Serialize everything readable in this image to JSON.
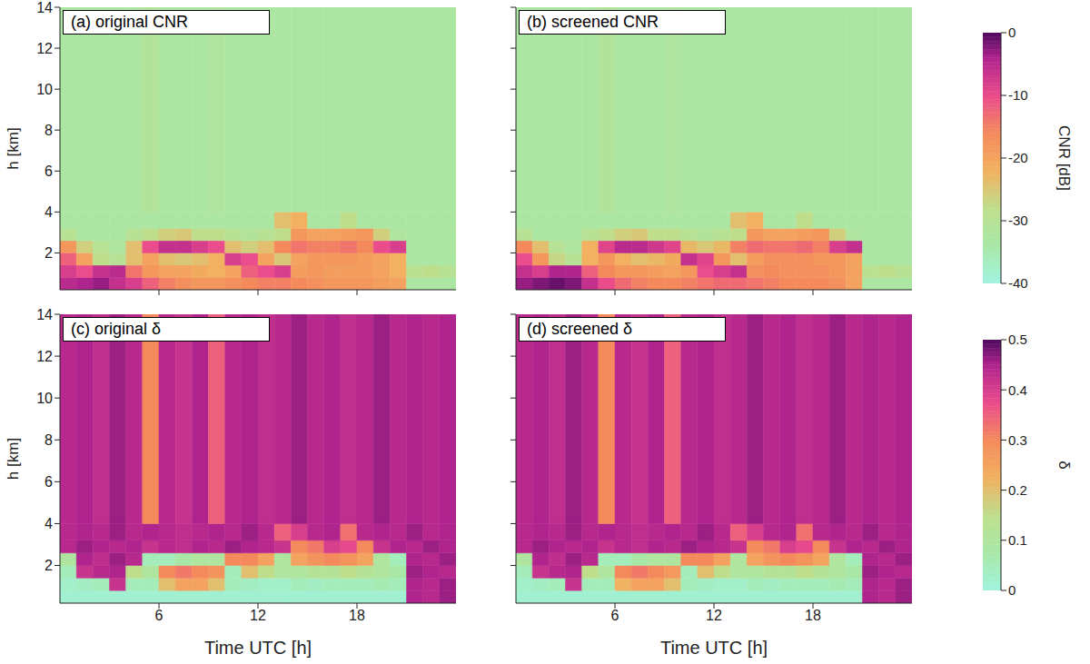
{
  "chart_data": [
    {
      "type": "heatmap",
      "title": "(a) original CNR",
      "y_label": "h [km]",
      "xlim": [
        0,
        24
      ],
      "xticks": [
        6,
        12,
        18
      ],
      "ylim": [
        0.2,
        14
      ],
      "yticks": [
        2,
        4,
        6,
        8,
        10,
        12,
        14
      ],
      "tick_labels": "y",
      "x_edges": [
        0,
        1,
        2,
        3,
        4,
        5,
        6,
        7,
        8,
        9,
        10,
        11,
        12,
        13,
        14,
        15,
        16,
        17,
        18,
        19,
        20,
        21,
        22,
        23,
        24
      ],
      "y_edges": [
        0.2,
        0.8,
        1.4,
        2,
        2.6,
        3.2,
        4,
        14
      ],
      "values": [
        [
          -5,
          -4,
          -3,
          -6,
          -8,
          -12,
          -15,
          -17,
          -18,
          -18,
          -17,
          -16,
          -15,
          -15,
          -16,
          -17,
          -18,
          -18,
          -18,
          -19,
          -20,
          -33,
          -33,
          -33
        ],
        [
          -8,
          -10,
          -6,
          -5,
          -14,
          -18,
          -20,
          -20,
          -21,
          -22,
          -20,
          -12,
          -10,
          -8,
          -19,
          -18,
          -19,
          -19,
          -19,
          -20,
          -22,
          -29,
          -28,
          -30
        ],
        [
          -12,
          -20,
          -28,
          -30,
          -24,
          -20,
          -24,
          -25,
          -24,
          -22,
          -8,
          -10,
          -20,
          -25,
          -20,
          -18,
          -18,
          -18,
          -19,
          -20,
          -22,
          -33,
          -33,
          -33
        ],
        [
          -18,
          -26,
          -30,
          -32,
          -24,
          -10,
          -6,
          -6,
          -8,
          -10,
          -24,
          -26,
          -24,
          -16,
          -14,
          -15,
          -15,
          -14,
          -16,
          -10,
          -8,
          -33,
          -33,
          -33
        ],
        [
          -30,
          -33,
          -33,
          -33,
          -30,
          -28,
          -26,
          -25,
          -28,
          -28,
          -30,
          -31,
          -30,
          -28,
          -18,
          -20,
          -20,
          -19,
          -18,
          -26,
          -32,
          -33,
          -33,
          -33
        ],
        [
          -33,
          -33,
          -33,
          -33,
          -33,
          -33,
          -33,
          -33,
          -33,
          -33,
          -33,
          -33,
          -33,
          -24,
          -22,
          -33,
          -33,
          -28,
          -33,
          -33,
          -33,
          -33,
          -33,
          -33
        ],
        [
          -33,
          -33,
          -33,
          -33,
          -33,
          -31,
          -33,
          -33,
          -33,
          -32,
          -33,
          -33,
          -33,
          -33,
          -33,
          -33,
          -33,
          -33,
          -33,
          -33,
          -33,
          -33,
          -33,
          -33
        ]
      ]
    },
    {
      "type": "heatmap",
      "title": "(b) screened CNR",
      "xlim": [
        0,
        24
      ],
      "xticks": [
        6,
        12,
        18
      ],
      "ylim": [
        0.2,
        14
      ],
      "yticks": [
        2,
        4,
        6,
        8,
        10,
        12,
        14
      ],
      "tick_labels": false,
      "x_edges": [
        0,
        1,
        2,
        3,
        4,
        5,
        6,
        7,
        8,
        9,
        10,
        11,
        12,
        13,
        14,
        15,
        16,
        17,
        18,
        19,
        20,
        21,
        22,
        23,
        24
      ],
      "y_edges": [
        0.2,
        0.8,
        1.4,
        2,
        2.6,
        3.2,
        4,
        14
      ],
      "values": [
        [
          -3,
          -2,
          -1,
          -2,
          -6,
          -10,
          -13,
          -15,
          -16,
          -16,
          -15,
          -14,
          -13,
          -13,
          -14,
          -15,
          -16,
          -16,
          -16,
          -17,
          -20,
          -33,
          -33,
          -33
        ],
        [
          -6,
          -8,
          -4,
          -4,
          -12,
          -16,
          -18,
          -18,
          -19,
          -20,
          -18,
          -10,
          -8,
          -6,
          -17,
          -16,
          -17,
          -17,
          -17,
          -18,
          -20,
          -29,
          -28,
          -30
        ],
        [
          -10,
          -18,
          -27,
          -30,
          -22,
          -18,
          -22,
          -24,
          -23,
          -21,
          -6,
          -9,
          -18,
          -24,
          -19,
          -17,
          -17,
          -17,
          -18,
          -18,
          -20,
          -33,
          -33,
          -33
        ],
        [
          -16,
          -24,
          -30,
          -32,
          -22,
          -9,
          -5,
          -5,
          -7,
          -9,
          -23,
          -25,
          -23,
          -15,
          -13,
          -14,
          -14,
          -13,
          -15,
          -8,
          -6,
          -33,
          -33,
          -33
        ],
        [
          -30,
          -33,
          -33,
          -33,
          -30,
          -28,
          -26,
          -25,
          -28,
          -28,
          -30,
          -31,
          -30,
          -28,
          -18,
          -20,
          -20,
          -19,
          -18,
          -26,
          -32,
          -33,
          -33,
          -33
        ],
        [
          -33,
          -33,
          -33,
          -33,
          -33,
          -33,
          -33,
          -33,
          -33,
          -33,
          -33,
          -33,
          -33,
          -24,
          -22,
          -33,
          -33,
          -28,
          -33,
          -33,
          -33,
          -33,
          -33,
          -33
        ],
        [
          -33,
          -33,
          -33,
          -33,
          -33,
          -31,
          -33,
          -33,
          -33,
          -32,
          -33,
          -33,
          -33,
          -33,
          -33,
          -33,
          -33,
          -33,
          -33,
          -33,
          -33,
          -33,
          -33,
          -33
        ]
      ],
      "colorbar": {
        "label": "CNR [dB]",
        "range": [
          -40,
          0
        ],
        "ticks": [
          -40,
          -30,
          -20,
          -10,
          0
        ]
      }
    },
    {
      "type": "heatmap",
      "title": "(c) original δ",
      "x_label": "Time UTC [h]",
      "y_label": "h [km]",
      "xlim": [
        0,
        24
      ],
      "xticks": [
        6,
        12,
        18
      ],
      "ylim": [
        0.2,
        14
      ],
      "yticks": [
        2,
        4,
        6,
        8,
        10,
        12,
        14
      ],
      "x_edges": [
        0,
        1,
        2,
        3,
        4,
        5,
        6,
        7,
        8,
        9,
        10,
        11,
        12,
        13,
        14,
        15,
        16,
        17,
        18,
        19,
        20,
        21,
        22,
        23,
        24
      ],
      "y_edges": [
        0.2,
        0.8,
        1.4,
        2,
        2.6,
        3.2,
        4,
        14
      ],
      "values": [
        [
          0.02,
          0.02,
          0.02,
          0.02,
          0.02,
          0.02,
          0.02,
          0.02,
          0.02,
          0.02,
          0.02,
          0.02,
          0.02,
          0.02,
          0.02,
          0.02,
          0.02,
          0.02,
          0.02,
          0.02,
          0.02,
          0.45,
          0.44,
          0.46
        ],
        [
          0.03,
          0.04,
          0.05,
          0.42,
          0.05,
          0.05,
          0.2,
          0.25,
          0.25,
          0.2,
          0.05,
          0.04,
          0.03,
          0.03,
          0.05,
          0.04,
          0.05,
          0.05,
          0.05,
          0.06,
          0.05,
          0.45,
          0.44,
          0.46
        ],
        [
          0.05,
          0.42,
          0.44,
          0.45,
          0.15,
          0.1,
          0.3,
          0.32,
          0.3,
          0.28,
          0.05,
          0.2,
          0.15,
          0.1,
          0.1,
          0.12,
          0.12,
          0.15,
          0.12,
          0.1,
          0.08,
          0.46,
          0.45,
          0.44
        ],
        [
          0.1,
          0.45,
          0.43,
          0.46,
          0.44,
          0.05,
          0.05,
          0.08,
          0.1,
          0.1,
          0.3,
          0.3,
          0.25,
          0.1,
          0.25,
          0.28,
          0.3,
          0.28,
          0.25,
          0.1,
          0.05,
          0.45,
          0.44,
          0.46
        ],
        [
          0.44,
          0.46,
          0.45,
          0.44,
          0.45,
          0.42,
          0.44,
          0.43,
          0.45,
          0.44,
          0.46,
          0.45,
          0.44,
          0.42,
          0.3,
          0.32,
          0.4,
          0.38,
          0.3,
          0.42,
          0.45,
          0.44,
          0.46,
          0.45
        ],
        [
          0.44,
          0.45,
          0.44,
          0.46,
          0.44,
          0.45,
          0.44,
          0.43,
          0.44,
          0.45,
          0.44,
          0.46,
          0.44,
          0.35,
          0.4,
          0.44,
          0.45,
          0.33,
          0.44,
          0.45,
          0.44,
          0.46,
          0.44,
          0.45
        ],
        [
          0.44,
          0.45,
          0.43,
          0.46,
          0.44,
          0.3,
          0.44,
          0.42,
          0.45,
          0.35,
          0.44,
          0.45,
          0.43,
          0.44,
          0.46,
          0.44,
          0.45,
          0.43,
          0.44,
          0.46,
          0.44,
          0.45,
          0.44,
          0.45
        ]
      ]
    },
    {
      "type": "heatmap",
      "title": "(d) screened δ",
      "x_label": "Time UTC [h]",
      "xlim": [
        0,
        24
      ],
      "xticks": [
        6,
        12,
        18
      ],
      "ylim": [
        0.2,
        14
      ],
      "yticks": [
        2,
        4,
        6,
        8,
        10,
        12,
        14
      ],
      "tick_labels": "x",
      "x_edges": [
        0,
        1,
        2,
        3,
        4,
        5,
        6,
        7,
        8,
        9,
        10,
        11,
        12,
        13,
        14,
        15,
        16,
        17,
        18,
        19,
        20,
        21,
        22,
        23,
        24
      ],
      "y_edges": [
        0.2,
        0.8,
        1.4,
        2,
        2.6,
        3.2,
        4,
        14
      ],
      "values": [
        [
          0.02,
          0.02,
          0.02,
          0.02,
          0.02,
          0.02,
          0.02,
          0.02,
          0.02,
          0.02,
          0.02,
          0.02,
          0.02,
          0.02,
          0.02,
          0.02,
          0.02,
          0.02,
          0.02,
          0.02,
          0.02,
          0.45,
          0.44,
          0.46
        ],
        [
          0.03,
          0.04,
          0.05,
          0.42,
          0.05,
          0.05,
          0.22,
          0.25,
          0.25,
          0.2,
          0.05,
          0.04,
          0.03,
          0.03,
          0.05,
          0.04,
          0.05,
          0.05,
          0.05,
          0.06,
          0.05,
          0.45,
          0.44,
          0.46
        ],
        [
          0.05,
          0.42,
          0.44,
          0.45,
          0.15,
          0.1,
          0.3,
          0.32,
          0.3,
          0.27,
          0.05,
          0.2,
          0.15,
          0.1,
          0.1,
          0.12,
          0.12,
          0.15,
          0.12,
          0.1,
          0.08,
          0.46,
          0.45,
          0.44
        ],
        [
          0.1,
          0.45,
          0.43,
          0.46,
          0.44,
          0.05,
          0.05,
          0.08,
          0.1,
          0.1,
          0.3,
          0.3,
          0.25,
          0.1,
          0.25,
          0.28,
          0.3,
          0.28,
          0.25,
          0.1,
          0.05,
          0.45,
          0.44,
          0.46
        ],
        [
          0.44,
          0.46,
          0.45,
          0.44,
          0.45,
          0.42,
          0.44,
          0.43,
          0.45,
          0.44,
          0.46,
          0.45,
          0.44,
          0.42,
          0.3,
          0.32,
          0.4,
          0.38,
          0.3,
          0.42,
          0.45,
          0.44,
          0.46,
          0.45
        ],
        [
          0.44,
          0.45,
          0.44,
          0.46,
          0.44,
          0.45,
          0.44,
          0.43,
          0.44,
          0.45,
          0.44,
          0.46,
          0.44,
          0.35,
          0.4,
          0.44,
          0.45,
          0.33,
          0.44,
          0.45,
          0.44,
          0.46,
          0.44,
          0.45
        ],
        [
          0.44,
          0.45,
          0.43,
          0.46,
          0.44,
          0.3,
          0.44,
          0.42,
          0.45,
          0.35,
          0.44,
          0.45,
          0.43,
          0.44,
          0.46,
          0.44,
          0.45,
          0.43,
          0.44,
          0.46,
          0.44,
          0.45,
          0.44,
          0.45
        ]
      ],
      "colorbar": {
        "label": "δ",
        "range": [
          0,
          0.5
        ],
        "ticks": [
          0,
          0.1,
          0.2,
          0.3,
          0.4,
          0.5
        ]
      }
    }
  ]
}
